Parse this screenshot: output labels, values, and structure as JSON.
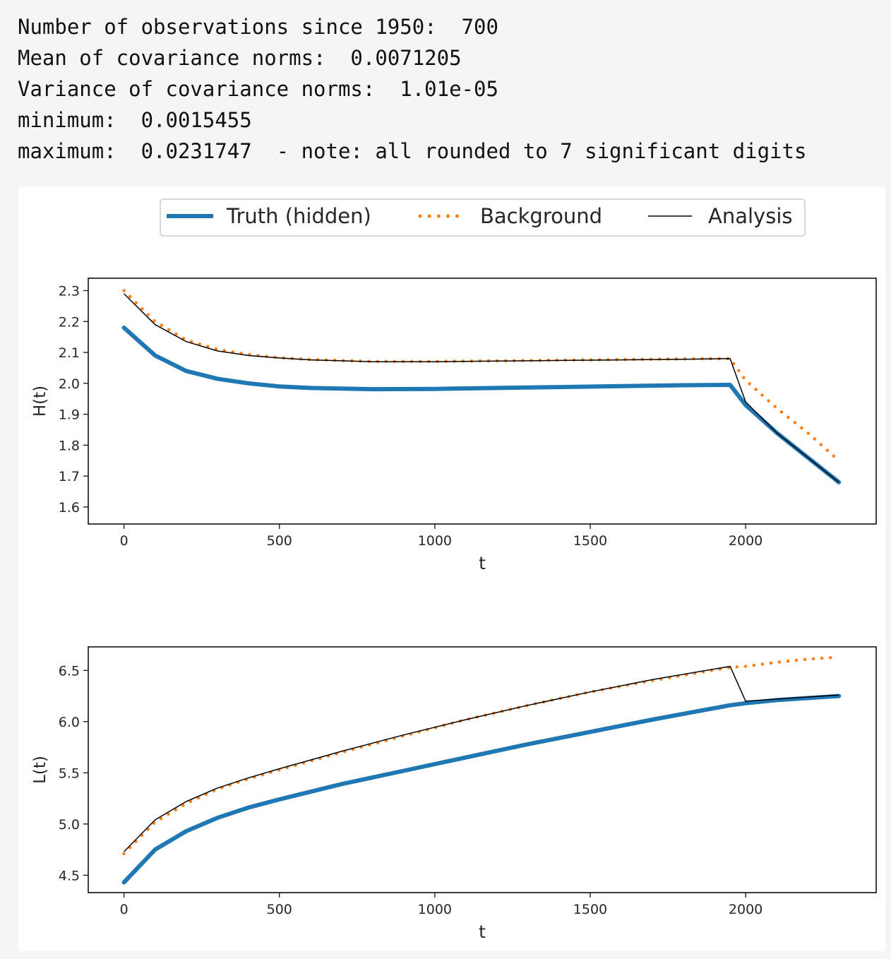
{
  "output_lines": [
    "Number of observations since 1950:  700",
    "Mean of covariance norms:  0.0071205",
    "Variance of covariance norms:  1.01e-05",
    "minimum:  0.0015455",
    "maximum:  0.0231747  - note: all rounded to 7 significant digits"
  ],
  "legend": {
    "truth": "Truth (hidden)",
    "background": "Background",
    "analysis": "Analysis"
  },
  "colors": {
    "truth": "#1f77b4",
    "background": "#ff7f0e",
    "analysis": "#000000"
  },
  "chart_data": [
    {
      "type": "line",
      "xlabel": "t",
      "ylabel": "H(t)",
      "xlim": [
        -115,
        2420
      ],
      "ylim": [
        1.545,
        2.34
      ],
      "xticks": [
        0,
        500,
        1000,
        1500,
        2000
      ],
      "yticks": [
        1.6,
        1.7,
        1.8,
        1.9,
        2.0,
        2.1,
        2.2,
        2.3
      ],
      "series": [
        {
          "name": "Truth (hidden)",
          "x": [
            0,
            100,
            200,
            300,
            400,
            500,
            600,
            800,
            1000,
            1200,
            1400,
            1600,
            1800,
            1950,
            2000,
            2100,
            2200,
            2300
          ],
          "values": [
            2.18,
            2.09,
            2.04,
            2.015,
            2.0,
            1.99,
            1.985,
            1.981,
            1.982,
            1.985,
            1.988,
            1.991,
            1.994,
            1.995,
            1.93,
            1.84,
            1.76,
            1.68
          ]
        },
        {
          "name": "Background",
          "x": [
            0,
            100,
            200,
            300,
            400,
            500,
            600,
            800,
            1000,
            1200,
            1400,
            1600,
            1800,
            1950,
            2000,
            2100,
            2200,
            2300
          ],
          "values": [
            2.3,
            2.2,
            2.14,
            2.11,
            2.093,
            2.083,
            2.077,
            2.071,
            2.071,
            2.073,
            2.075,
            2.077,
            2.079,
            2.08,
            2.01,
            1.92,
            1.84,
            1.75
          ]
        },
        {
          "name": "Analysis",
          "x": [
            0,
            100,
            200,
            300,
            400,
            500,
            600,
            800,
            1000,
            1200,
            1400,
            1600,
            1800,
            1950,
            2000,
            2100,
            2200,
            2300
          ],
          "values": [
            2.29,
            2.19,
            2.135,
            2.105,
            2.09,
            2.082,
            2.076,
            2.07,
            2.07,
            2.072,
            2.074,
            2.076,
            2.078,
            2.08,
            1.94,
            1.84,
            1.76,
            1.68
          ]
        }
      ]
    },
    {
      "type": "line",
      "xlabel": "t",
      "ylabel": "L(t)",
      "xlim": [
        -115,
        2420
      ],
      "ylim": [
        4.33,
        6.73
      ],
      "xticks": [
        0,
        500,
        1000,
        1500,
        2000
      ],
      "yticks": [
        4.5,
        5.0,
        5.5,
        6.0,
        6.5
      ],
      "series": [
        {
          "name": "Truth (hidden)",
          "x": [
            0,
            100,
            200,
            300,
            400,
            500,
            700,
            900,
            1100,
            1300,
            1500,
            1700,
            1950,
            2000,
            2100,
            2200,
            2300
          ],
          "values": [
            4.43,
            4.75,
            4.93,
            5.06,
            5.16,
            5.24,
            5.39,
            5.52,
            5.65,
            5.78,
            5.9,
            6.02,
            6.16,
            6.18,
            6.21,
            6.23,
            6.25
          ]
        },
        {
          "name": "Background",
          "x": [
            0,
            100,
            200,
            300,
            400,
            500,
            700,
            900,
            1100,
            1300,
            1500,
            1700,
            1950,
            2000,
            2100,
            2200,
            2300
          ],
          "values": [
            4.71,
            5.02,
            5.2,
            5.34,
            5.44,
            5.53,
            5.7,
            5.86,
            6.02,
            6.16,
            6.29,
            6.4,
            6.53,
            6.54,
            6.58,
            6.61,
            6.63
          ]
        },
        {
          "name": "Analysis",
          "x": [
            0,
            100,
            200,
            300,
            400,
            500,
            700,
            900,
            1100,
            1300,
            1500,
            1700,
            1950,
            2000,
            2100,
            2200,
            2300
          ],
          "values": [
            4.73,
            5.04,
            5.22,
            5.35,
            5.45,
            5.54,
            5.71,
            5.87,
            6.02,
            6.16,
            6.29,
            6.41,
            6.54,
            6.2,
            6.22,
            6.24,
            6.26
          ]
        }
      ]
    }
  ]
}
